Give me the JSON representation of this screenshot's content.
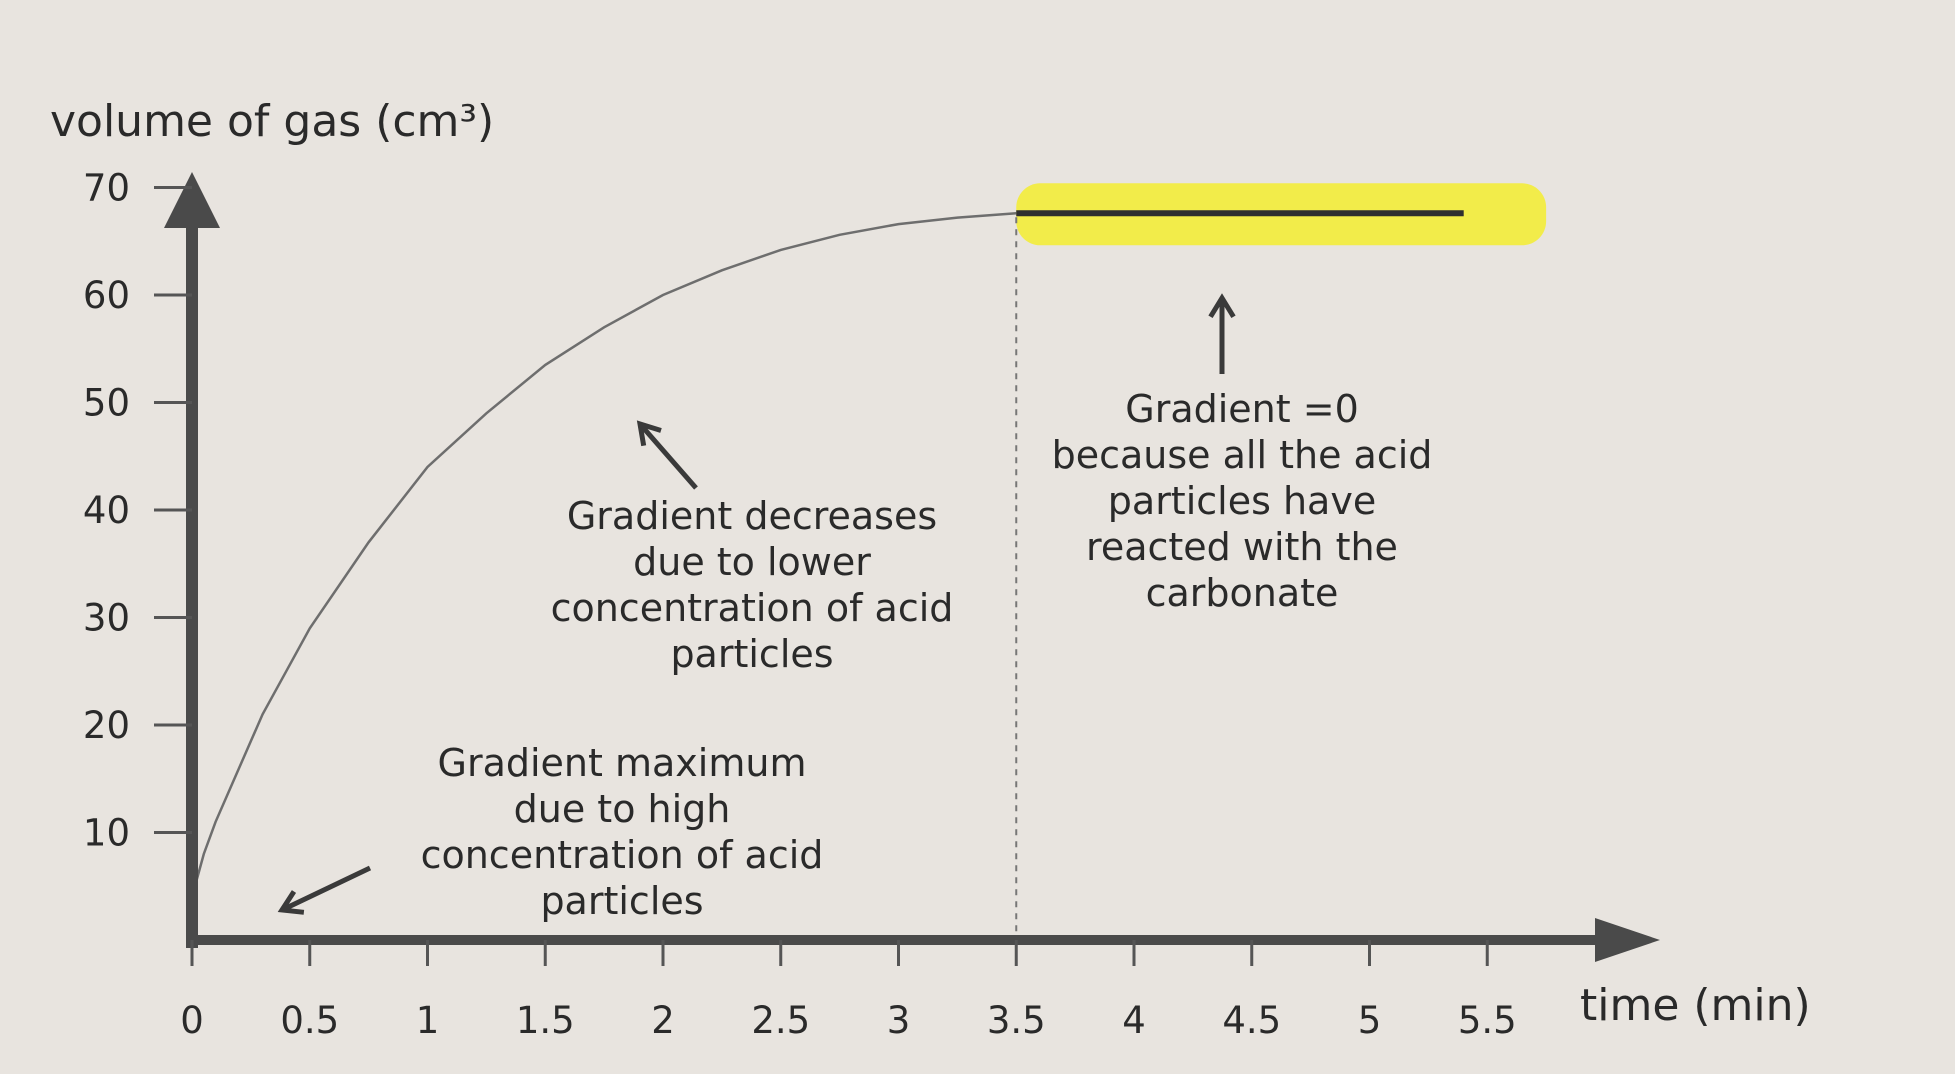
{
  "chart_data": {
    "type": "line",
    "ylabel": "volume of gas (cm³)",
    "xlabel": "time (min)",
    "x_ticks": [
      "0",
      "0.5",
      "1",
      "1.5",
      "2",
      "2.5",
      "3",
      "3.5",
      "4",
      "4.5",
      "5",
      "5.5"
    ],
    "y_ticks": [
      "10",
      "20",
      "30",
      "40",
      "50",
      "60",
      "70"
    ],
    "xlim": [
      0,
      6.25
    ],
    "ylim": [
      0,
      74
    ],
    "series": [
      {
        "x": [
          0,
          0.05,
          0.1,
          0.2,
          0.3,
          0.4,
          0.5,
          0.75,
          1,
          1.25,
          1.5,
          1.75,
          2,
          2.25,
          2.5,
          2.75,
          3,
          3.25,
          3.5
        ],
        "y": [
          4,
          8,
          11,
          16,
          21,
          25,
          29,
          37,
          44,
          49,
          53.5,
          57,
          60,
          62.3,
          64.2,
          65.6,
          66.6,
          67.2,
          67.6
        ]
      },
      {
        "x": [
          3.5,
          5.4
        ],
        "y": [
          67.6,
          67.6
        ]
      }
    ],
    "reference_line_x": 3.5,
    "highlight": {
      "x_range": [
        3.5,
        5.75
      ],
      "color": "#f3ec3a"
    },
    "annotations": [
      {
        "lines": [
          "Gradient maximum",
          "due to high",
          "concentration of acid",
          "particles"
        ]
      },
      {
        "lines": [
          "Gradient decreases",
          "due to lower",
          "concentration of acid",
          "particles"
        ]
      },
      {
        "lines": [
          "Gradient =0",
          "because all the acid",
          "particles have",
          "reacted with the",
          "carbonate"
        ]
      }
    ],
    "grid": false,
    "legend": "none"
  }
}
